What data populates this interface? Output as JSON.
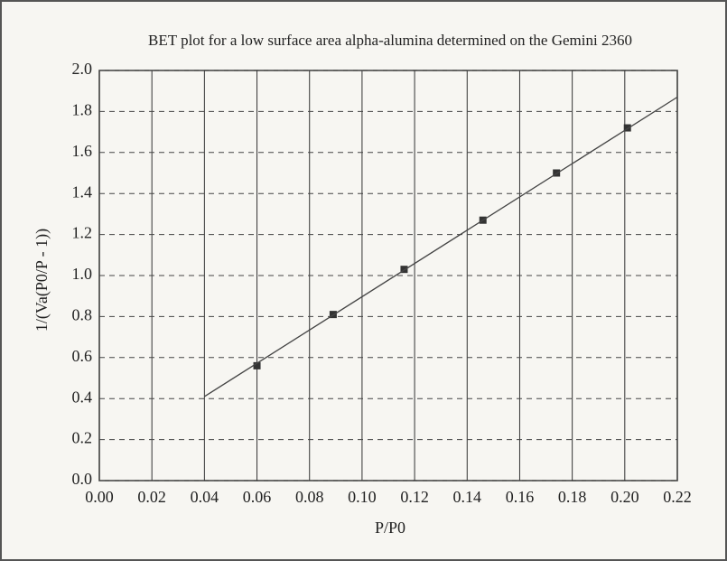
{
  "chart_data": {
    "type": "scatter",
    "title": "BET plot for a low surface area alpha-alumina determined on the Gemini 2360",
    "x_label": "P/P0",
    "y_label": "1/(Va(P0/P - 1))",
    "series": [
      {
        "color": "#333333",
        "x": [
          0.06,
          0.089,
          0.116,
          0.146,
          0.174,
          0.201
        ],
        "values": [
          0.56,
          0.81,
          1.03,
          1.27,
          1.5,
          1.72
        ]
      },
      {
        "type": "line",
        "color": "#444444",
        "x": [
          0.04,
          0.22
        ],
        "values": [
          0.41,
          1.87
        ]
      }
    ],
    "xlim": [
      0,
      0.22
    ],
    "xticks": [
      {
        "value": 0,
        "label": "0.00"
      },
      0.02,
      0.04,
      0.06,
      0.08,
      {
        "value": 0.1,
        "label": "0.10"
      },
      0.12,
      0.14,
      0.16,
      0.18,
      {
        "value": 0.2,
        "label": "0.20"
      },
      0.22
    ],
    "ylim": [
      0,
      2
    ],
    "yticks": [
      {
        "value": 0,
        "label": "0.0"
      },
      0.2,
      0.4,
      0.6,
      0.8,
      {
        "value": 1,
        "label": "1.0"
      },
      1.2,
      1.4,
      1.6,
      1.8,
      {
        "value": 2,
        "label": "2.0"
      }
    ],
    "grid": true
  }
}
